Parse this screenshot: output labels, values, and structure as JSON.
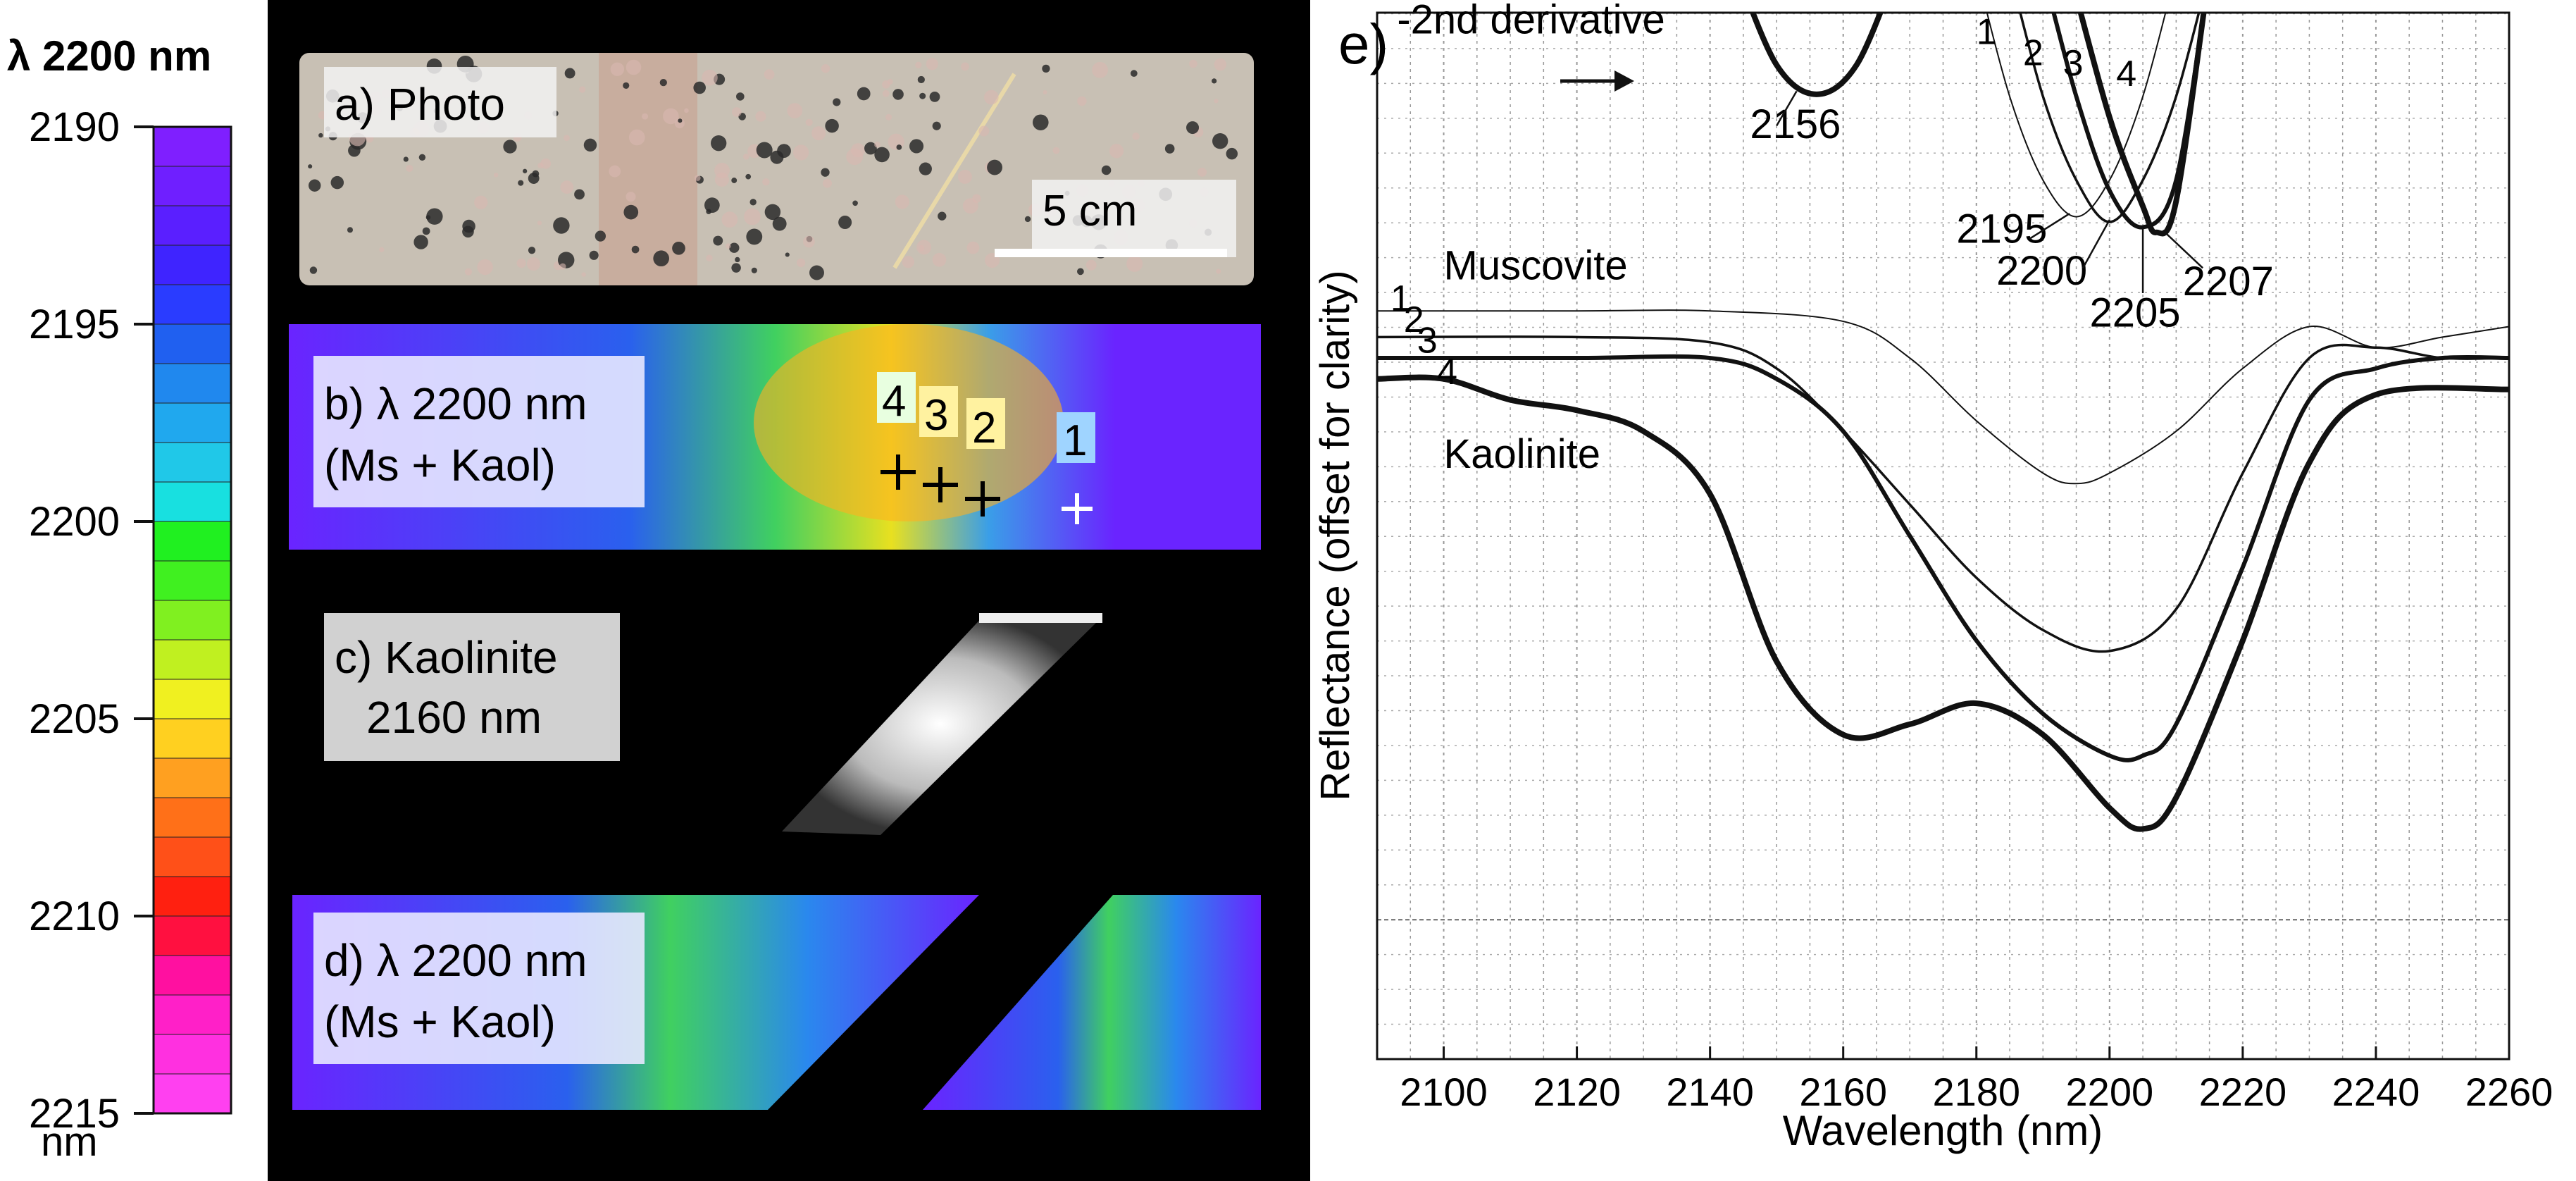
{
  "colorbar": {
    "title": "λ 2200 nm",
    "unit": "nm",
    "range": [
      2190,
      2215
    ],
    "ticks": [
      "2190",
      "2195",
      "2200",
      "2205",
      "2210",
      "2215"
    ],
    "colors": [
      "#7f1fff",
      "#6f1fff",
      "#5a1fff",
      "#3f24ff",
      "#2a3cff",
      "#2060f0",
      "#2088ee",
      "#20a8ee",
      "#20c8e8",
      "#18e0e0",
      "#20f020",
      "#40f020",
      "#80f020",
      "#c0f020",
      "#f0f020",
      "#ffd020",
      "#ffa020",
      "#ff7018",
      "#ff5018",
      "#ff2010",
      "#ff1040",
      "#ff10a0",
      "#ff20c8",
      "#ff30e0",
      "#ff40f0"
    ],
    "color_stops": [
      "#7f1fff",
      "#2a3cff",
      "#20a8ee",
      "#18e0e0",
      "#20f020",
      "#c0f020",
      "#ffd020",
      "#ff7018",
      "#ff1040",
      "#ff40f0"
    ]
  },
  "panels": {
    "a": {
      "label": "a) Photo",
      "scale": "5 cm"
    },
    "b": {
      "label_line1": "b) λ 2200 nm",
      "label_line2": "(Ms + Kaol)",
      "markers": [
        "4",
        "3",
        "2",
        "1"
      ]
    },
    "c": {
      "label_line1": "c) Kaolinite",
      "label_line2": "2160 nm"
    },
    "d": {
      "label_line1": "d) λ 2200 nm",
      "label_line2": "(Ms + Kaol)"
    }
  },
  "chart_data": {
    "type": "line",
    "panel_label": "e)",
    "title": "",
    "xlabel": "Wavelength (nm)",
    "ylabel": "Reflectance (offset for clarity)",
    "xlim": [
      2090,
      2260
    ],
    "ylim": [
      0,
      100
    ],
    "x_ticks": [
      2100,
      2120,
      2140,
      2160,
      2180,
      2200,
      2220,
      2240,
      2260
    ],
    "grid": true,
    "series": [
      {
        "name": "1",
        "width": 2,
        "x": [
          2090,
          2120,
          2140,
          2160,
          2170,
          2180,
          2190,
          2195,
          2200,
          2210,
          2220,
          2230,
          2240,
          2250,
          2260
        ],
        "y": [
          71.5,
          71.5,
          71.5,
          70.5,
          67,
          61,
          56,
          55,
          56,
          60,
          66,
          70,
          68,
          69,
          70
        ]
      },
      {
        "name": "2",
        "width": 3.5,
        "x": [
          2090,
          2120,
          2140,
          2150,
          2160,
          2170,
          2180,
          2190,
          2200,
          2210,
          2220,
          2230,
          2240,
          2250,
          2260
        ],
        "y": [
          69,
          69,
          68.5,
          66,
          60,
          53,
          46,
          41,
          39,
          43,
          56,
          67,
          68,
          67,
          67
        ]
      },
      {
        "name": "3",
        "width": 6,
        "x": [
          2090,
          2120,
          2140,
          2150,
          2160,
          2170,
          2180,
          2190,
          2200,
          2205,
          2210,
          2220,
          2230,
          2240,
          2250,
          2260
        ],
        "y": [
          67,
          67,
          67,
          65,
          60,
          50,
          40,
          33,
          29,
          29,
          32,
          47,
          63,
          66,
          67,
          67
        ]
      },
      {
        "name": "4",
        "width": 8,
        "x": [
          2090,
          2100,
          2110,
          2120,
          2130,
          2140,
          2150,
          2160,
          2170,
          2180,
          2190,
          2200,
          2205,
          2210,
          2220,
          2230,
          2240,
          2260
        ],
        "y": [
          65,
          65,
          63,
          62,
          60,
          54,
          38,
          31,
          32,
          34,
          31,
          24,
          22,
          25,
          40,
          57,
          63.5,
          64
        ]
      },
      {
        "name": "-2nd derivative top",
        "width": 8,
        "x": [
          2144,
          2150,
          2156,
          2162,
          2168
        ],
        "y": [
          104,
          95,
          92.2,
          95,
          104
        ]
      },
      {
        "name": "-2nd derivative 1",
        "width": 2,
        "x": [
          2180,
          2185,
          2190,
          2195,
          2200,
          2205,
          2210
        ],
        "y": [
          104,
          92,
          84,
          80.5,
          84,
          92,
          104
        ]
      },
      {
        "name": "-2nd derivative 2",
        "width": 3.5,
        "x": [
          2185,
          2190,
          2195,
          2200,
          2205,
          2210,
          2215
        ],
        "y": [
          104,
          92,
          84,
          80,
          84,
          92,
          104
        ]
      },
      {
        "name": "-2nd derivative 3",
        "width": 6,
        "x": [
          2190,
          2195,
          2200,
          2205,
          2210,
          2215
        ],
        "y": [
          104,
          92,
          83,
          79.5,
          84,
          104
        ]
      },
      {
        "name": "-2nd derivative 4",
        "width": 8,
        "x": [
          2194,
          2200,
          2205,
          2207,
          2210,
          2215
        ],
        "y": [
          104,
          90,
          81.5,
          79,
          82,
          104
        ]
      }
    ],
    "annotations": [
      {
        "text": "-2nd derivative",
        "x": 2093,
        "y": 98
      },
      {
        "text": "2156",
        "x": 2146,
        "y": 88
      },
      {
        "text": "2195",
        "x": 2177,
        "y": 78
      },
      {
        "text": "2200",
        "x": 2183,
        "y": 74
      },
      {
        "text": "2205",
        "x": 2197,
        "y": 70
      },
      {
        "text": "2207",
        "x": 2211,
        "y": 73
      },
      {
        "text": "Muscovite",
        "x": 2100,
        "y": 74.5
      },
      {
        "text": "Kaolinite",
        "x": 2100,
        "y": 56.5
      },
      {
        "text": "1",
        "x": 2180,
        "y": 97
      },
      {
        "text": "2",
        "x": 2187,
        "y": 95
      },
      {
        "text": "3",
        "x": 2193,
        "y": 94
      },
      {
        "text": "4",
        "x": 2201,
        "y": 93
      },
      {
        "text": "1",
        "x": 2092,
        "y": 71.5
      },
      {
        "text": "2",
        "x": 2094,
        "y": 69.5
      },
      {
        "text": "3",
        "x": 2096,
        "y": 67.5
      },
      {
        "text": "4",
        "x": 2099,
        "y": 64.5
      }
    ]
  }
}
